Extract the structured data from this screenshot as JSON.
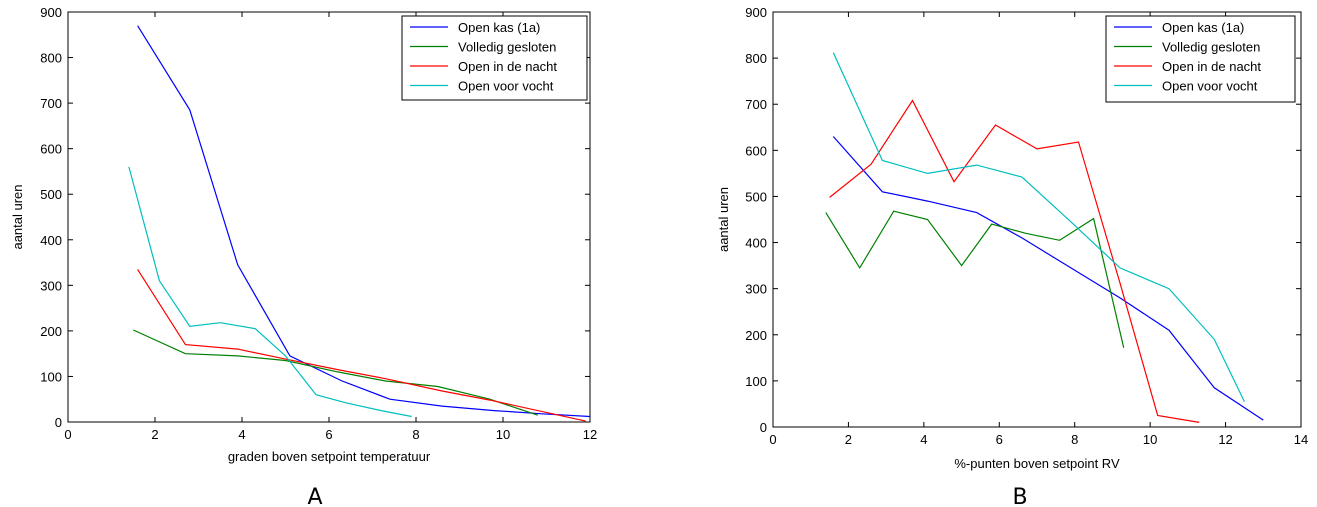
{
  "chart_data": [
    {
      "type": "line",
      "panel_label": "A",
      "title": "",
      "xlabel": "graden boven setpoint temperatuur",
      "ylabel": "aantal uren",
      "xlim": [
        0,
        12
      ],
      "ylim": [
        0,
        900
      ],
      "xticks": [
        0,
        2,
        4,
        6,
        8,
        10,
        12
      ],
      "yticks": [
        0,
        100,
        200,
        300,
        400,
        500,
        600,
        700,
        800,
        900
      ],
      "grid": false,
      "legend_position": "top-right",
      "series": [
        {
          "name": "Open kas (1a)",
          "color": "#0000ff",
          "x": [
            1.6,
            2.8,
            3.9,
            5.1,
            6.3,
            7.4,
            8.6,
            9.8,
            10.9,
            12
          ],
          "y": [
            870,
            685,
            345,
            145,
            90,
            50,
            35,
            25,
            18,
            12
          ]
        },
        {
          "name": "Volledig gesloten",
          "color": "#008000",
          "x": [
            1.5,
            2.7,
            3.9,
            5.0,
            6.2,
            7.3,
            8.5,
            9.7,
            10.8
          ],
          "y": [
            202,
            150,
            145,
            135,
            110,
            90,
            78,
            50,
            15
          ]
        },
        {
          "name": "Open in de nacht",
          "color": "#ff0000",
          "x": [
            1.6,
            2.7,
            3.9,
            5.0,
            6.2,
            7.3,
            8.6,
            9.7,
            11.9
          ],
          "y": [
            335,
            170,
            160,
            138,
            115,
            95,
            68,
            48,
            2
          ]
        },
        {
          "name": "Open voor vocht",
          "color": "#00bfbf",
          "x": [
            1.4,
            2.1,
            2.8,
            3.5,
            4.3,
            5.0,
            5.7,
            6.4,
            7.2,
            7.9
          ],
          "y": [
            560,
            310,
            210,
            218,
            205,
            145,
            60,
            42,
            25,
            12
          ]
        }
      ]
    },
    {
      "type": "line",
      "panel_label": "B",
      "title": "",
      "xlabel": "%-punten boven setpoint RV",
      "ylabel": "aantal uren",
      "xlim": [
        0,
        14
      ],
      "ylim": [
        0,
        900
      ],
      "xticks": [
        0,
        2,
        4,
        6,
        8,
        10,
        12,
        14
      ],
      "yticks": [
        0,
        100,
        200,
        300,
        400,
        500,
        600,
        700,
        800,
        900
      ],
      "grid": false,
      "legend_position": "top-right",
      "series": [
        {
          "name": "Open kas (1a)",
          "color": "#0000ff",
          "x": [
            1.6,
            2.9,
            4.1,
            5.4,
            6.6,
            7.9,
            9.2,
            10.5,
            11.7,
            13
          ],
          "y": [
            630,
            510,
            490,
            465,
            410,
            345,
            280,
            210,
            85,
            15
          ]
        },
        {
          "name": "Volledig gesloten",
          "color": "#008000",
          "x": [
            1.4,
            2.3,
            3.2,
            4.1,
            5.0,
            5.8,
            6.7,
            7.6,
            8.5,
            9.3
          ],
          "y": [
            465,
            345,
            468,
            450,
            350,
            440,
            420,
            405,
            452,
            172
          ]
        },
        {
          "name": "Open in de nacht",
          "color": "#ff0000",
          "x": [
            1.5,
            2.6,
            3.7,
            4.8,
            5.9,
            7.0,
            8.1,
            9.2,
            10.2,
            11.3
          ],
          "y": [
            498,
            570,
            708,
            532,
            655,
            603,
            618,
            312,
            25,
            10
          ]
        },
        {
          "name": "Open voor vocht",
          "color": "#00bfbf",
          "x": [
            1.6,
            2.9,
            4.1,
            5.4,
            6.6,
            7.9,
            9.2,
            10.5,
            11.7,
            12.5
          ],
          "y": [
            812,
            578,
            550,
            568,
            542,
            445,
            345,
            300,
            190,
            55
          ]
        }
      ]
    }
  ]
}
